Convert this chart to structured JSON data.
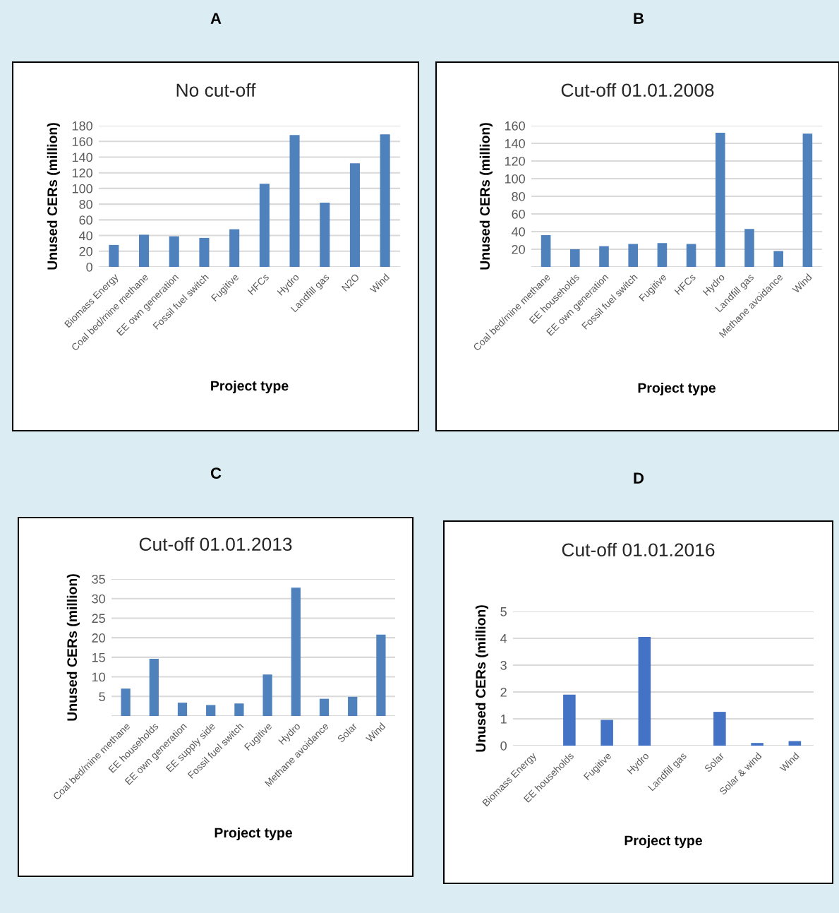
{
  "chart_data": [
    {
      "type": "bar",
      "title": "No cut-off",
      "annotations": [
        "A"
      ],
      "xlabel": "Project type",
      "ylabel": "Unused CERs (million)",
      "categories": [
        "Biomass Energy",
        "Coal bed/mine methane",
        "EE own generation",
        "Fossil fuel switch",
        "Fugitive",
        "HFCs",
        "Hydro",
        "Landfill gas",
        "N2O",
        "Wind"
      ],
      "values": [
        28,
        41,
        39,
        37,
        48,
        106,
        168,
        82,
        132,
        169
      ],
      "color": "#4f81bd",
      "ylim": [
        0,
        180
      ],
      "yticks": [
        0,
        20,
        40,
        60,
        80,
        100,
        120,
        140,
        160,
        180
      ],
      "grid": "y",
      "legend": false
    },
    {
      "type": "bar",
      "title": "Cut-off 01.01.2008",
      "annotations": [
        "B"
      ],
      "xlabel": "Project type",
      "ylabel": "Unused CERs (million)",
      "categories": [
        "Coal bed/mine methane",
        "EE households",
        "EE own generation",
        "Fossil fuel switch",
        "Fugitive",
        "HFCs",
        "Hydro",
        "Landfill gas",
        "Methane avoidance",
        "Wind"
      ],
      "values": [
        36,
        20,
        23.5,
        26,
        27,
        26,
        152,
        43,
        18,
        151
      ],
      "color": "#4f81bd",
      "ylim": [
        0,
        160
      ],
      "yticks": [
        {
          "value": 0,
          "label": null
        },
        20,
        40,
        60,
        80,
        100,
        120,
        140,
        160
      ],
      "grid": "y",
      "legend": false
    },
    {
      "type": "bar",
      "title": "Cut-off 01.01.2013",
      "annotations": [
        "C"
      ],
      "xlabel": "Project type",
      "ylabel": "Unused CERs (million)",
      "categories": [
        "Coal bed/mine methane",
        "EE households",
        "EE own generation",
        "EE supply side",
        "Fossil fuel switch",
        "Fugitive",
        "Hydro",
        "Methane avoidance",
        "Solar",
        "Wind"
      ],
      "values": [
        7,
        14.6,
        3.4,
        2.8,
        3.2,
        10.6,
        32.8,
        4.4,
        4.9,
        20.8
      ],
      "color": "#4f81bd",
      "ylim": [
        0,
        35
      ],
      "yticks": [
        {
          "value": 0,
          "label": null
        },
        5,
        10,
        15,
        20,
        25,
        30,
        35
      ],
      "grid": "y",
      "legend": false
    },
    {
      "type": "bar",
      "title": "Cut-off 01.01.2016",
      "annotations": [
        "D"
      ],
      "xlabel": "Project type",
      "ylabel": "Unused CERs (million)",
      "categories": [
        "Biomass Energy",
        "EE households",
        "Fugitive",
        "Hydro",
        "Landfill gas",
        "Solar",
        "Solar & wind",
        "Wind"
      ],
      "values": [
        0,
        1.9,
        0.96,
        4.05,
        0,
        1.26,
        0.1,
        0.17
      ],
      "color": "#4472c4",
      "ylim": [
        0,
        5
      ],
      "yticks": [
        0,
        1,
        2,
        3,
        4,
        5
      ],
      "grid": "y",
      "legend": false
    }
  ]
}
